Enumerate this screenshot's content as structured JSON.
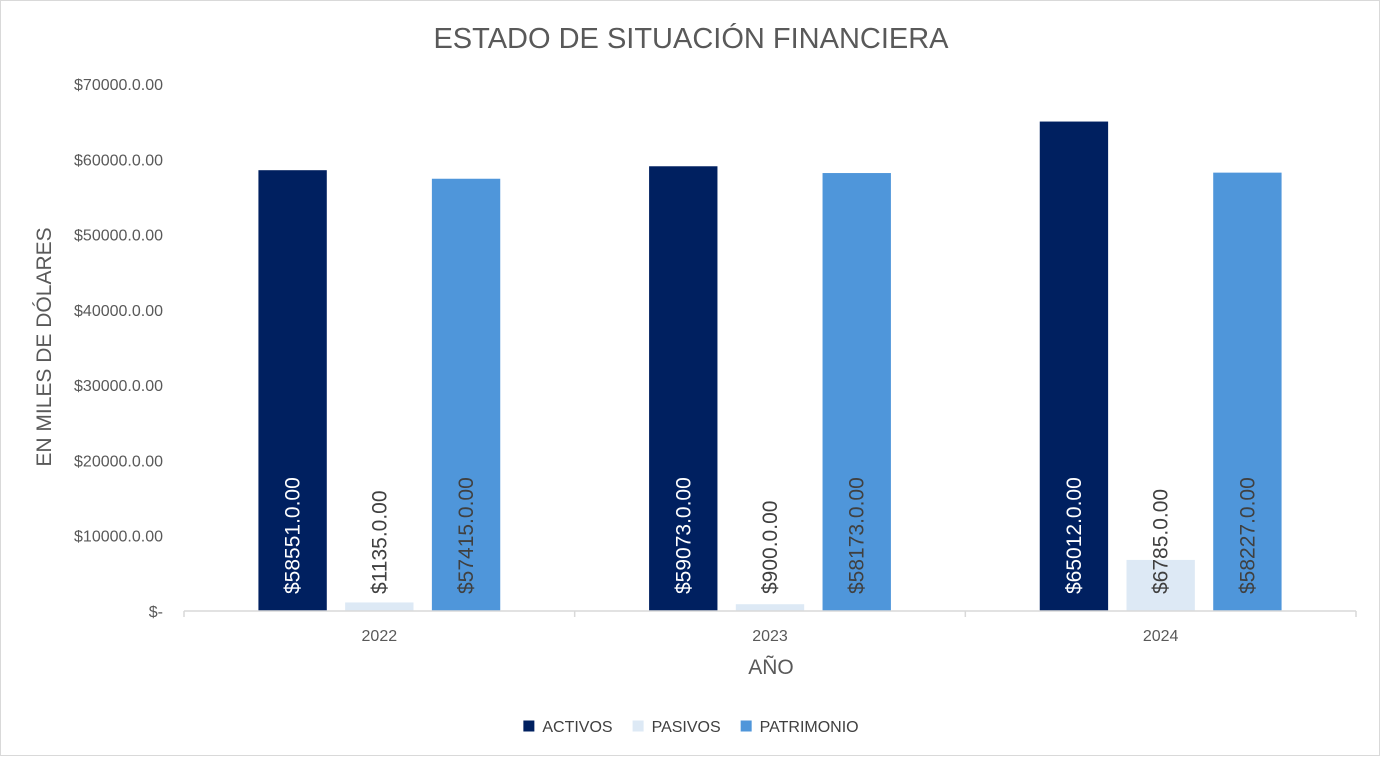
{
  "chart_data": {
    "type": "bar",
    "title": "ESTADO DE SITUACIÓN FINANCIERA",
    "xlabel": "AÑO",
    "ylabel": "EN MILES DE DÓLARES",
    "categories": [
      "2022",
      "2023",
      "2024"
    ],
    "ylim": [
      0,
      70000
    ],
    "ytick_values": [
      0,
      10000,
      20000,
      30000,
      40000,
      50000,
      60000,
      70000
    ],
    "ytick_labels": [
      "$-",
      "$10000.0.00",
      "$20000.0.00",
      "$30000.0.00",
      "$40000.0.00",
      "$50000.0.00",
      "$60000.0.00",
      "$70000.0.00"
    ],
    "grid": false,
    "legend_position": "bottom",
    "series": [
      {
        "name": "ACTIVOS",
        "color": "#002060",
        "label_color": "#ffffff",
        "values": [
          58551,
          59073,
          65012
        ],
        "labels": [
          "$58551.0.00",
          "$59073.0.00",
          "$65012.0.00"
        ]
      },
      {
        "name": "PASIVOS",
        "color": "#dde9f5",
        "label_color": "#404040",
        "values": [
          1135,
          900,
          6785
        ],
        "labels": [
          "$1135.0.00",
          "$900.0.00",
          "$6785.0.00"
        ]
      },
      {
        "name": "PATRIMONIO",
        "color": "#4f96da",
        "label_color": "#404040",
        "values": [
          57415,
          58173,
          58227
        ],
        "labels": [
          "$57415.0.00",
          "$58173.0.00",
          "$58227.0.00"
        ]
      }
    ]
  }
}
